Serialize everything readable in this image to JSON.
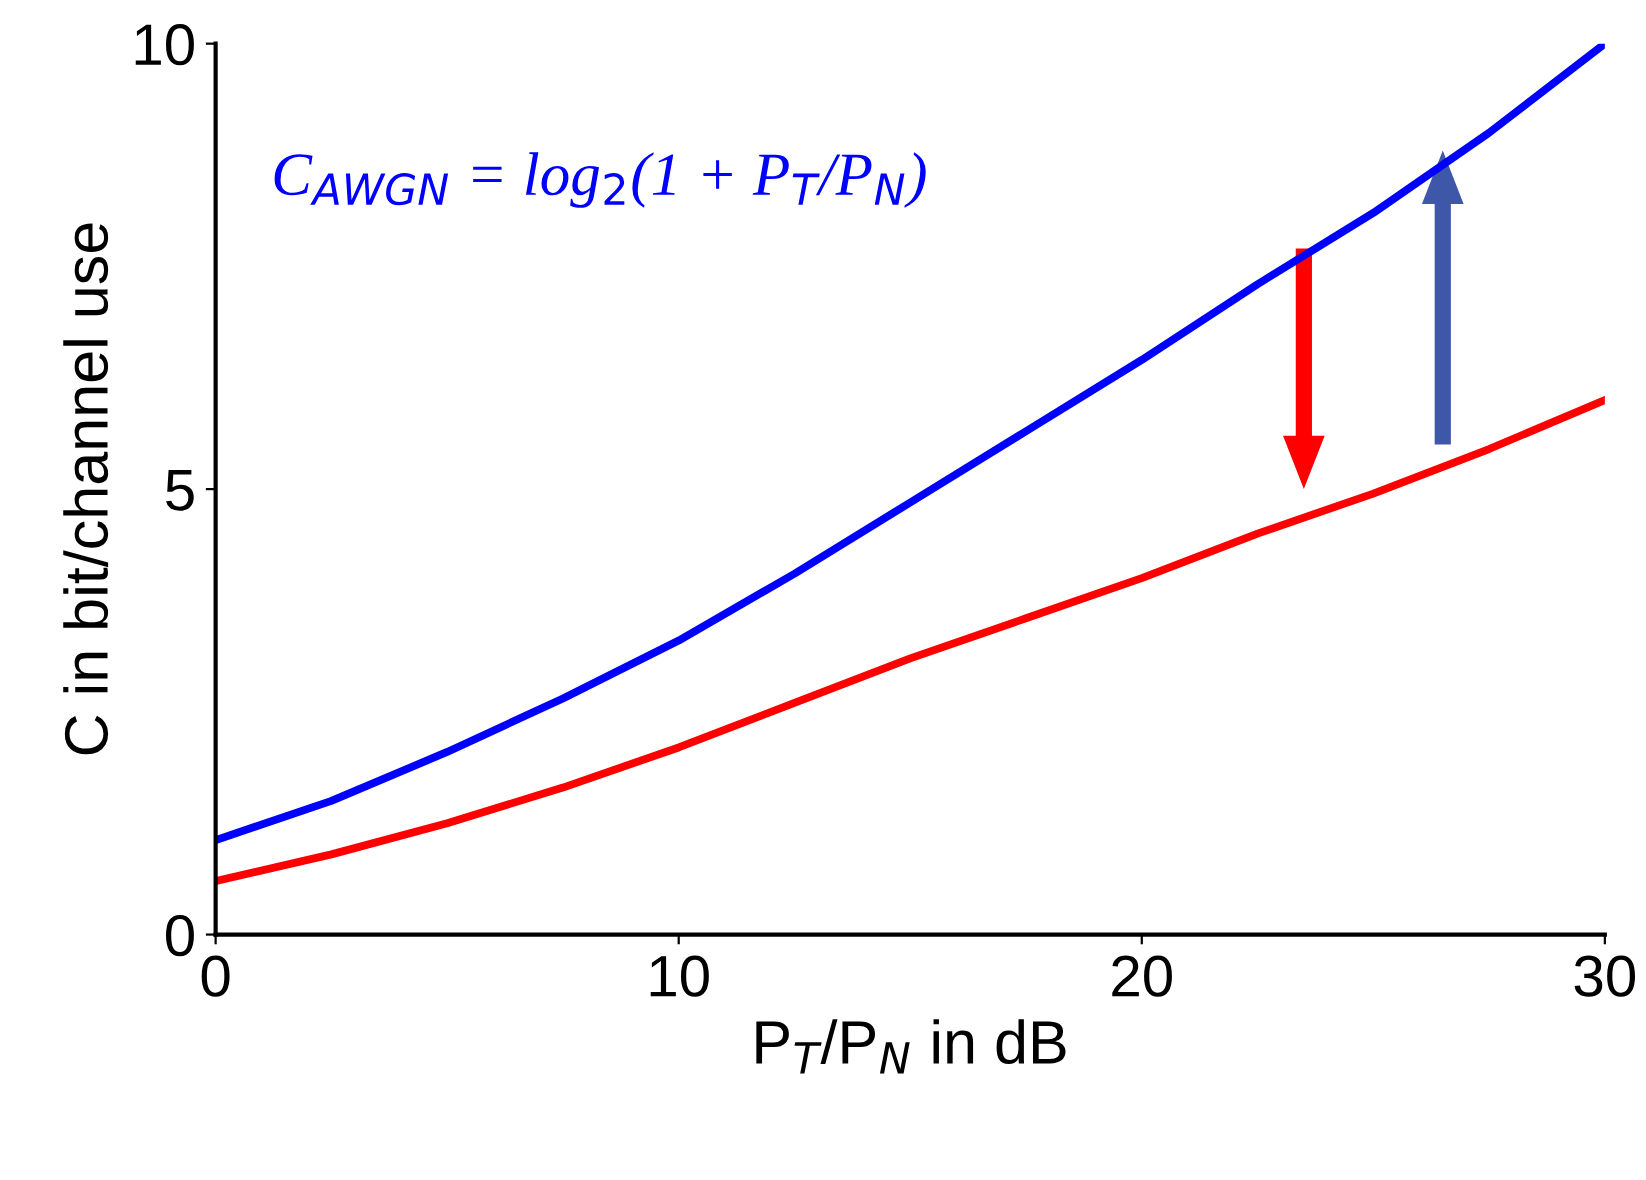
{
  "chart_data": {
    "type": "line",
    "xlabel": "P$_{T}$/P$_{N}$ in dB",
    "ylabel": "C in bit/channel use",
    "annotations": [
      "C$_{AWGN}$ = log$_{2}$(1 + P$_{T}$/P$_{N}$)"
    ],
    "x": [
      0,
      2.5,
      5,
      7.5,
      10,
      12.5,
      15,
      17.5,
      20,
      22.5,
      25,
      27.5,
      30
    ],
    "series": [
      {
        "color": "#0000ff",
        "values": [
          1.06,
          1.5,
          2.05,
          2.65,
          3.3,
          4.05,
          4.85,
          5.65,
          6.45,
          7.3,
          8.1,
          9.0,
          10.0
        ]
      },
      {
        "color": "#ff0000",
        "values": [
          0.6,
          0.9,
          1.25,
          1.65,
          2.1,
          2.6,
          3.1,
          3.55,
          4.0,
          4.5,
          4.95,
          5.45,
          6.0
        ]
      }
    ],
    "xlim": [
      0,
      30
    ],
    "xticks": [
      0,
      10,
      20,
      30
    ],
    "ylim": [
      0,
      10
    ],
    "yticks": [
      0,
      5,
      10
    ],
    "grid": false,
    "marker": "none",
    "line_style": "solid"
  }
}
